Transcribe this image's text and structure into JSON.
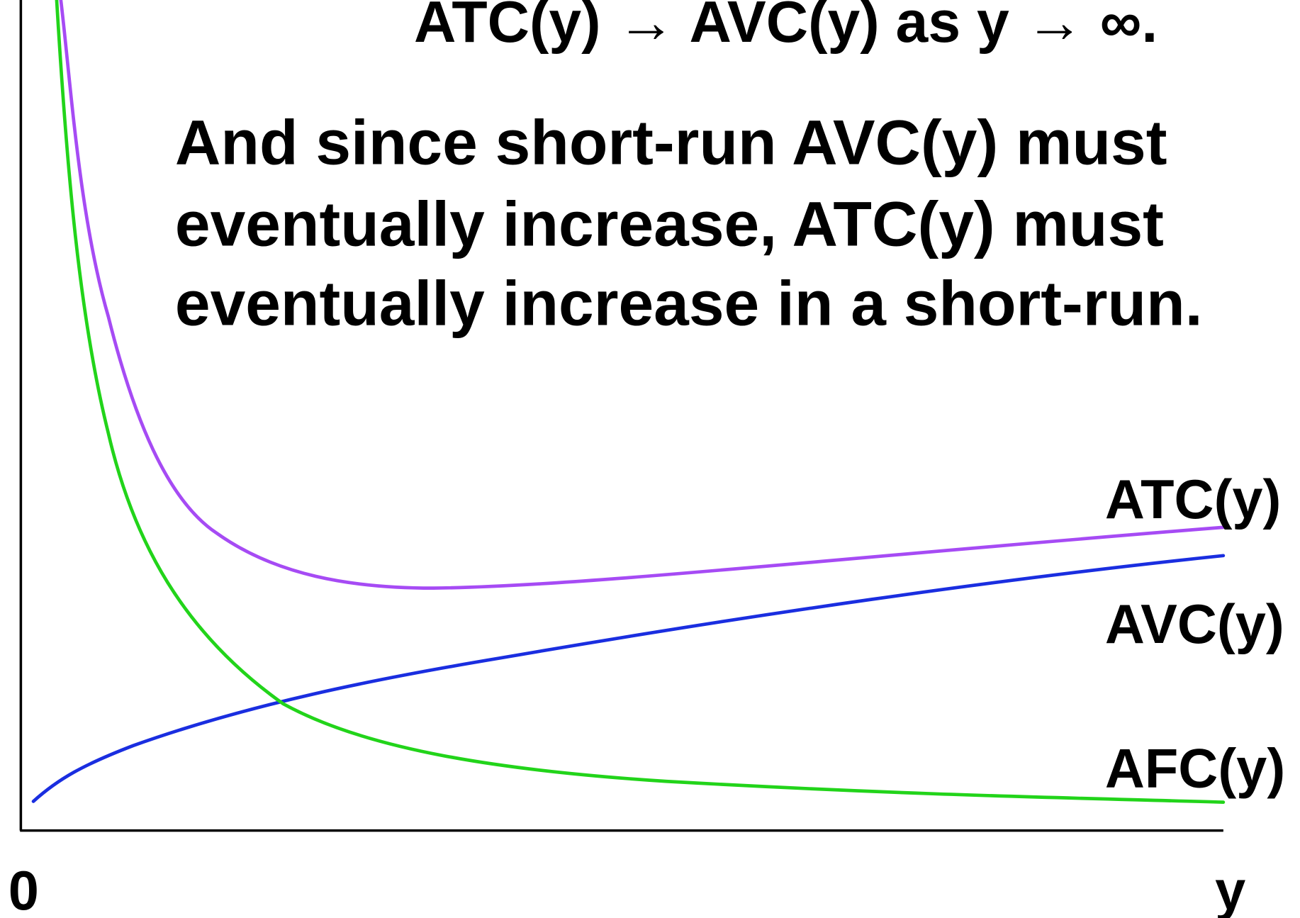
{
  "heading": "ATC(y) → AVC(y) as y → ∞.",
  "paragraph": [
    "And since short-run AVC(y) must",
    "eventually increase, ATC(y) must",
    "eventually increase in a short-run."
  ],
  "curve_labels": [
    "ATC(y)",
    "AVC(y)",
    "AFC(y)"
  ],
  "axis": {
    "origin": "0",
    "x_label": "y"
  }
}
